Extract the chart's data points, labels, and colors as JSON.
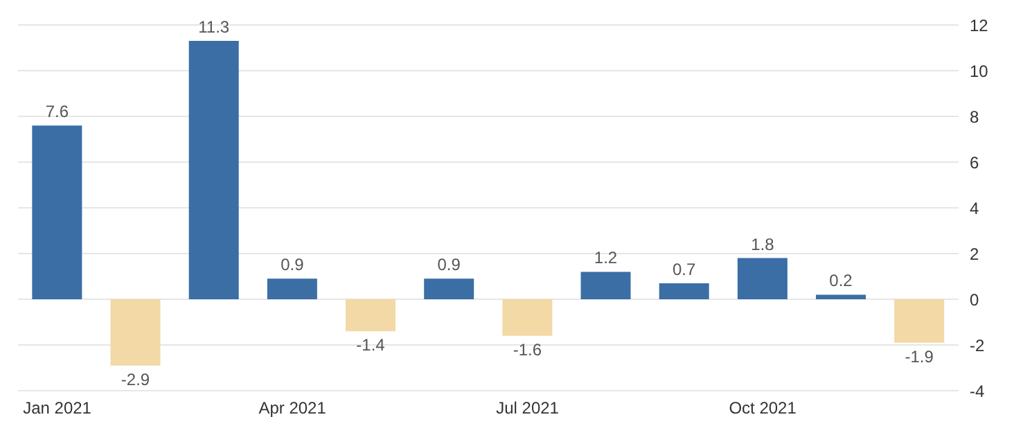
{
  "chart_data": {
    "type": "bar",
    "categories": [
      "Jan 2021",
      null,
      null,
      "Apr 2021",
      null,
      null,
      "Jul 2021",
      null,
      null,
      "Oct 2021",
      null,
      null
    ],
    "values": [
      7.6,
      -2.9,
      11.3,
      0.9,
      -1.4,
      0.9,
      -1.6,
      1.2,
      0.7,
      1.8,
      0.2,
      -1.9
    ],
    "colors": [
      "#3a6ea5",
      "#f2d9a6",
      "#3a6ea5",
      "#3a6ea5",
      "#f2d9a6",
      "#3a6ea5",
      "#f2d9a6",
      "#3a6ea5",
      "#3a6ea5",
      "#3a6ea5",
      "#3a6ea5",
      "#f2d9a6"
    ],
    "ylim": [
      -4,
      12
    ],
    "yticks": [
      -4,
      -2,
      0,
      2,
      4,
      6,
      8,
      10,
      12
    ],
    "grid": "y",
    "data_labels": true
  }
}
